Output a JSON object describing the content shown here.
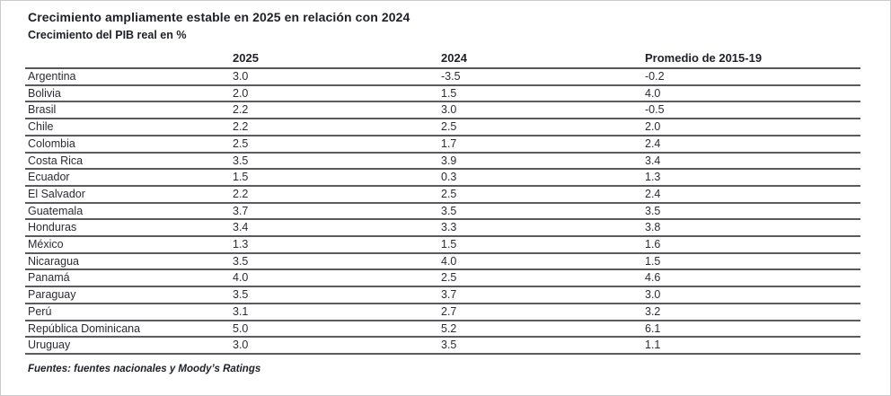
{
  "header": {
    "title": "Crecimiento ampliamente estable en 2025 en relación con 2024",
    "subtitle": "Crecimiento del PIB real en %"
  },
  "chart_data": {
    "type": "table",
    "title": "Crecimiento ampliamente estable en 2025 en relación con 2024",
    "subtitle": "Crecimiento del PIB real en %",
    "columns": [
      "",
      "2025",
      "2024",
      "Promedio de 2015-19"
    ],
    "rows": [
      [
        "Argentina",
        "3.0",
        "-3.5",
        "-0.2"
      ],
      [
        "Bolivia",
        "2.0",
        "1.5",
        "4.0"
      ],
      [
        "Brasil",
        "2.2",
        "3.0",
        "-0.5"
      ],
      [
        "Chile",
        "2.2",
        "2.5",
        "2.0"
      ],
      [
        "Colombia",
        "2.5",
        "1.7",
        "2.4"
      ],
      [
        "Costa Rica",
        "3.5",
        "3.9",
        "3.4"
      ],
      [
        "Ecuador",
        "1.5",
        "0.3",
        "1.3"
      ],
      [
        "El Salvador",
        "2.2",
        "2.5",
        "2.4"
      ],
      [
        "Guatemala",
        "3.7",
        "3.5",
        "3.5"
      ],
      [
        "Honduras",
        "3.4",
        "3.3",
        "3.8"
      ],
      [
        "México",
        "1.3",
        "1.5",
        "1.6"
      ],
      [
        "Nicaragua",
        "3.5",
        "4.0",
        "1.5"
      ],
      [
        "Panamá",
        "4.0",
        "2.5",
        "4.6"
      ],
      [
        "Paraguay",
        "3.5",
        "3.7",
        "3.0"
      ],
      [
        "Perú",
        "3.1",
        "2.7",
        "3.2"
      ],
      [
        "República Dominicana",
        "5.0",
        "5.2",
        "6.1"
      ],
      [
        "Uruguay",
        "3.0",
        "3.5",
        "1.1"
      ]
    ]
  },
  "footer": {
    "source": "Fuentes: fuentes nacionales y Moody’s Ratings"
  },
  "colors": {
    "title_text": "#1e2029",
    "body_text": "#2a2c33",
    "row_line": "#5a5a5f",
    "frame_border": "#c9cbcd",
    "background": "#ffffff"
  }
}
